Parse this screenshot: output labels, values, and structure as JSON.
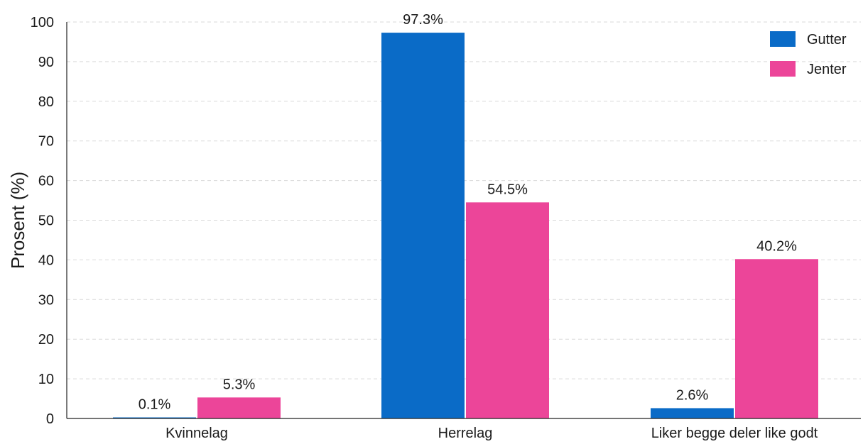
{
  "chart_data": {
    "type": "bar",
    "title": "",
    "xlabel": "",
    "ylabel": "Prosent (%)",
    "ylim": [
      0,
      100
    ],
    "yticks": [
      0,
      10,
      20,
      30,
      40,
      50,
      60,
      70,
      80,
      90,
      100
    ],
    "grid": true,
    "legend_position": "top-right",
    "categories": [
      "Kvinnelag",
      "Herrelag",
      "Liker begge deler like godt"
    ],
    "series": [
      {
        "name": "Gutter",
        "color": "#0a6bc7",
        "values": [
          0.1,
          97.3,
          2.6
        ],
        "labels": [
          "0.1%",
          "97.3%",
          "2.6%"
        ]
      },
      {
        "name": "Jenter",
        "color": "#ec4599",
        "values": [
          5.3,
          54.5,
          40.2
        ],
        "labels": [
          "5.3%",
          "54.5%",
          "40.2%"
        ]
      }
    ]
  }
}
